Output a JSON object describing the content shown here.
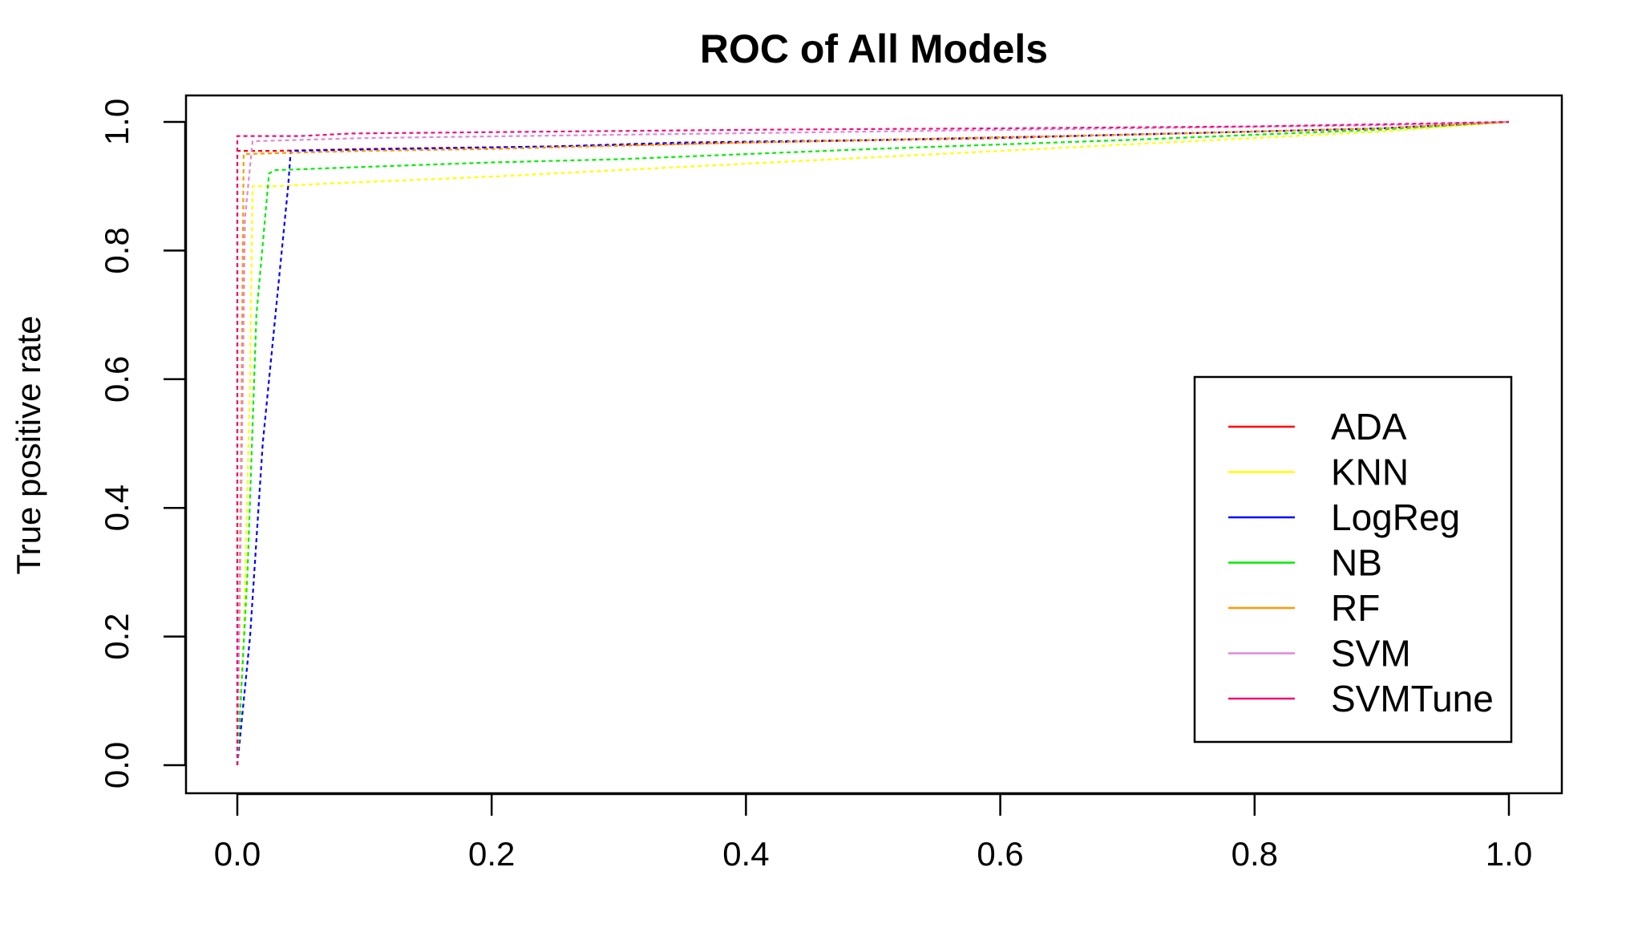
{
  "chart_data": {
    "type": "line",
    "title": "ROC of All Models",
    "xlabel": "",
    "ylabel": "True positive rate",
    "xlim": [
      0,
      1
    ],
    "ylim": [
      0,
      1
    ],
    "x_ticks": [
      0.0,
      0.2,
      0.4,
      0.6,
      0.8,
      1.0
    ],
    "y_ticks": [
      0.0,
      0.2,
      0.4,
      0.6,
      0.8,
      1.0
    ],
    "x_tick_labels": [
      "0.0",
      "0.2",
      "0.4",
      "0.6",
      "0.8",
      "1.0"
    ],
    "y_tick_labels": [
      "0.0",
      "0.2",
      "0.4",
      "0.6",
      "0.8",
      "1.0"
    ],
    "grid": false,
    "legend_position": "bottom-right",
    "line_style": "dashed",
    "series": [
      {
        "name": "ADA",
        "color": "#ff0000",
        "points": [
          [
            0.0,
            0.0
          ],
          [
            0.0,
            0.955
          ],
          [
            0.03,
            0.955
          ],
          [
            0.1,
            0.958
          ],
          [
            0.25,
            0.962
          ],
          [
            0.4,
            0.968
          ],
          [
            0.6,
            0.975
          ],
          [
            0.8,
            0.985
          ],
          [
            0.9,
            0.99
          ],
          [
            1.0,
            1.0
          ]
        ]
      },
      {
        "name": "KNN",
        "color": "#ffff00",
        "points": [
          [
            0.0,
            0.0
          ],
          [
            0.005,
            0.2
          ],
          [
            0.01,
            0.6
          ],
          [
            0.012,
            0.9
          ],
          [
            0.03,
            0.9
          ],
          [
            0.08,
            0.905
          ],
          [
            0.2,
            0.915
          ],
          [
            0.3,
            0.925
          ],
          [
            0.4,
            0.935
          ],
          [
            0.5,
            0.945
          ],
          [
            0.6,
            0.955
          ],
          [
            0.7,
            0.965
          ],
          [
            0.8,
            0.975
          ],
          [
            0.9,
            0.985
          ],
          [
            1.0,
            1.0
          ]
        ]
      },
      {
        "name": "LogReg",
        "color": "#0000ff",
        "points": [
          [
            0.0,
            0.0
          ],
          [
            0.01,
            0.2
          ],
          [
            0.02,
            0.5
          ],
          [
            0.04,
            0.9
          ],
          [
            0.042,
            0.955
          ],
          [
            0.1,
            0.957
          ],
          [
            0.25,
            0.962
          ],
          [
            0.35,
            0.968
          ],
          [
            0.5,
            0.972
          ],
          [
            0.65,
            0.978
          ],
          [
            0.8,
            0.985
          ],
          [
            0.9,
            0.99
          ],
          [
            1.0,
            1.0
          ]
        ]
      },
      {
        "name": "NB",
        "color": "#00ee00",
        "points": [
          [
            0.0,
            0.0
          ],
          [
            0.008,
            0.3
          ],
          [
            0.015,
            0.7
          ],
          [
            0.025,
            0.92
          ],
          [
            0.03,
            0.925
          ],
          [
            0.1,
            0.93
          ],
          [
            0.2,
            0.937
          ],
          [
            0.3,
            0.942
          ],
          [
            0.4,
            0.95
          ],
          [
            0.5,
            0.958
          ],
          [
            0.6,
            0.965
          ],
          [
            0.7,
            0.972
          ],
          [
            0.8,
            0.98
          ],
          [
            0.9,
            0.988
          ],
          [
            1.0,
            1.0
          ]
        ]
      },
      {
        "name": "RF",
        "color": "#ff9900",
        "points": [
          [
            0.0,
            0.0
          ],
          [
            0.003,
            0.5
          ],
          [
            0.005,
            0.95
          ],
          [
            0.04,
            0.952
          ],
          [
            0.1,
            0.955
          ],
          [
            0.2,
            0.958
          ],
          [
            0.3,
            0.963
          ],
          [
            0.4,
            0.968
          ],
          [
            0.5,
            0.972
          ],
          [
            0.6,
            0.976
          ],
          [
            0.7,
            0.98
          ],
          [
            0.8,
            0.985
          ],
          [
            0.9,
            0.99
          ],
          [
            1.0,
            1.0
          ]
        ]
      },
      {
        "name": "SVM",
        "color": "#dd88dd",
        "points": [
          [
            0.0,
            0.0
          ],
          [
            0.003,
            0.4
          ],
          [
            0.006,
            0.85
          ],
          [
            0.012,
            0.97
          ],
          [
            0.1,
            0.975
          ],
          [
            0.3,
            0.98
          ],
          [
            0.5,
            0.985
          ],
          [
            0.7,
            0.99
          ],
          [
            0.9,
            0.995
          ],
          [
            1.0,
            1.0
          ]
        ]
      },
      {
        "name": "SVMTune",
        "color": "#ee1177",
        "points": [
          [
            0.0,
            0.0
          ],
          [
            0.0,
            0.978
          ],
          [
            0.05,
            0.978
          ],
          [
            0.09,
            0.982
          ],
          [
            0.25,
            0.985
          ],
          [
            0.42,
            0.988
          ],
          [
            0.6,
            0.99
          ],
          [
            0.8,
            0.993
          ],
          [
            0.92,
            0.997
          ],
          [
            1.0,
            1.0
          ]
        ]
      }
    ]
  }
}
